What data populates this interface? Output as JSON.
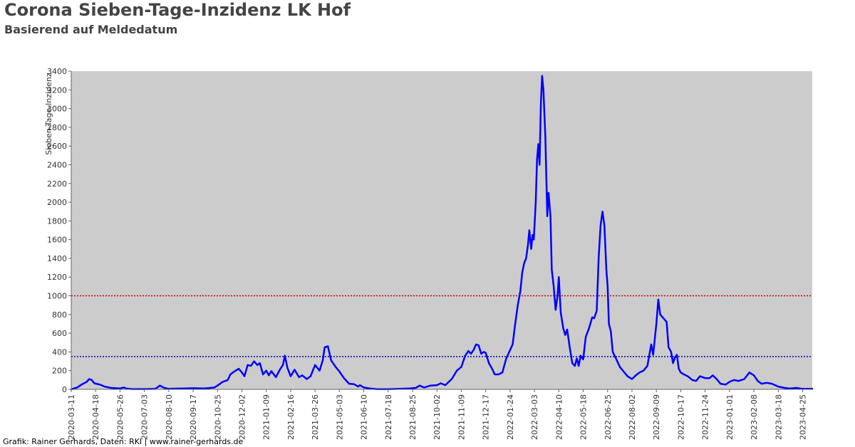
{
  "header": {
    "title": "Corona Sieben-Tage-Inzidenz LK Hof",
    "subtitle": "Basierend auf Meldedatum"
  },
  "footer": {
    "credit": "Grafik: Rainer Gerhards, Daten: RKI | www.rainer-gerhards.de"
  },
  "colors": {
    "plot_background": "#cccccc",
    "series_line": "#0000ff",
    "threshold_1000": "#cc0000",
    "threshold_350": "#0000cc",
    "axis_text": "#333333"
  },
  "chart_data": {
    "type": "line",
    "title": "Corona Sieben-Tage-Inzidenz LK Hof",
    "subtitle": "Basierend auf Meldedatum",
    "xlabel": "",
    "ylabel": "Sieben-Tage-Inzidenz",
    "ylim": [
      0,
      3400
    ],
    "xlim": [
      "2020-03-11",
      "2023-05-10"
    ],
    "grid": false,
    "legend": "none",
    "yticks": [
      0,
      200,
      400,
      600,
      800,
      1000,
      1200,
      1400,
      1600,
      1800,
      2000,
      2200,
      2400,
      2600,
      2800,
      3000,
      3200,
      3400
    ],
    "xticks": [
      "2020-03-11",
      "2020-04-18",
      "2020-05-26",
      "2020-07-03",
      "2020-08-10",
      "2020-09-17",
      "2020-10-25",
      "2020-12-02",
      "2021-01-09",
      "2021-02-16",
      "2021-03-26",
      "2021-05-03",
      "2021-06-10",
      "2021-07-18",
      "2021-08-25",
      "2021-10-02",
      "2021-11-09",
      "2021-12-17",
      "2022-01-24",
      "2022-03-03",
      "2022-04-10",
      "2022-05-18",
      "2022-06-25",
      "2022-08-02",
      "2022-09-09",
      "2022-10-17",
      "2022-11-24",
      "2023-01-01",
      "2023-02-08",
      "2023-03-18",
      "2023-04-25"
    ],
    "reference_lines": [
      {
        "y": 1000,
        "style": "dotted",
        "color": "#cc0000"
      },
      {
        "y": 350,
        "style": "dotted",
        "color": "#0000cc"
      }
    ],
    "series": [
      {
        "color": "#0000ff",
        "points": [
          [
            "2020-03-11",
            0
          ],
          [
            "2020-03-20",
            20
          ],
          [
            "2020-03-28",
            55
          ],
          [
            "2020-04-04",
            80
          ],
          [
            "2020-04-08",
            110
          ],
          [
            "2020-04-12",
            100
          ],
          [
            "2020-04-16",
            65
          ],
          [
            "2020-04-25",
            50
          ],
          [
            "2020-05-02",
            30
          ],
          [
            "2020-05-12",
            15
          ],
          [
            "2020-05-26",
            10
          ],
          [
            "2020-06-01",
            20
          ],
          [
            "2020-06-05",
            8
          ],
          [
            "2020-06-15",
            3
          ],
          [
            "2020-07-03",
            3
          ],
          [
            "2020-07-20",
            5
          ],
          [
            "2020-07-27",
            40
          ],
          [
            "2020-08-03",
            15
          ],
          [
            "2020-08-10",
            5
          ],
          [
            "2020-08-25",
            8
          ],
          [
            "2020-09-17",
            12
          ],
          [
            "2020-10-05",
            10
          ],
          [
            "2020-10-20",
            20
          ],
          [
            "2020-10-25",
            40
          ],
          [
            "2020-11-02",
            80
          ],
          [
            "2020-11-10",
            100
          ],
          [
            "2020-11-14",
            160
          ],
          [
            "2020-11-20",
            190
          ],
          [
            "2020-11-27",
            220
          ],
          [
            "2020-12-02",
            180
          ],
          [
            "2020-12-06",
            140
          ],
          [
            "2020-12-11",
            260
          ],
          [
            "2020-12-16",
            250
          ],
          [
            "2020-12-21",
            300
          ],
          [
            "2020-12-26",
            260
          ],
          [
            "2020-12-30",
            280
          ],
          [
            "2021-01-04",
            160
          ],
          [
            "2021-01-09",
            200
          ],
          [
            "2021-01-13",
            150
          ],
          [
            "2021-01-17",
            195
          ],
          [
            "2021-01-24",
            130
          ],
          [
            "2021-01-31",
            220
          ],
          [
            "2021-02-04",
            260
          ],
          [
            "2021-02-07",
            360
          ],
          [
            "2021-02-11",
            230
          ],
          [
            "2021-02-16",
            140
          ],
          [
            "2021-02-22",
            210
          ],
          [
            "2021-03-01",
            130
          ],
          [
            "2021-03-06",
            150
          ],
          [
            "2021-03-13",
            110
          ],
          [
            "2021-03-19",
            140
          ],
          [
            "2021-03-26",
            260
          ],
          [
            "2021-04-02",
            200
          ],
          [
            "2021-04-07",
            310
          ],
          [
            "2021-04-10",
            450
          ],
          [
            "2021-04-15",
            460
          ],
          [
            "2021-04-20",
            310
          ],
          [
            "2021-04-27",
            240
          ],
          [
            "2021-05-03",
            190
          ],
          [
            "2021-05-10",
            120
          ],
          [
            "2021-05-18",
            60
          ],
          [
            "2021-05-26",
            55
          ],
          [
            "2021-06-01",
            30
          ],
          [
            "2021-06-04",
            45
          ],
          [
            "2021-06-10",
            20
          ],
          [
            "2021-06-20",
            8
          ],
          [
            "2021-07-01",
            2
          ],
          [
            "2021-07-18",
            2
          ],
          [
            "2021-08-05",
            5
          ],
          [
            "2021-08-20",
            10
          ],
          [
            "2021-08-30",
            15
          ],
          [
            "2021-09-05",
            40
          ],
          [
            "2021-09-12",
            20
          ],
          [
            "2021-09-22",
            40
          ],
          [
            "2021-10-02",
            45
          ],
          [
            "2021-10-08",
            65
          ],
          [
            "2021-10-15",
            45
          ],
          [
            "2021-10-25",
            110
          ],
          [
            "2021-11-02",
            200
          ],
          [
            "2021-11-09",
            240
          ],
          [
            "2021-11-15",
            360
          ],
          [
            "2021-11-20",
            410
          ],
          [
            "2021-11-24",
            380
          ],
          [
            "2021-11-28",
            420
          ],
          [
            "2021-12-02",
            480
          ],
          [
            "2021-12-06",
            470
          ],
          [
            "2021-12-10",
            380
          ],
          [
            "2021-12-14",
            400
          ],
          [
            "2021-12-17",
            390
          ],
          [
            "2021-12-22",
            280
          ],
          [
            "2021-12-27",
            220
          ],
          [
            "2021-12-31",
            160
          ],
          [
            "2022-01-06",
            160
          ],
          [
            "2022-01-12",
            180
          ],
          [
            "2022-01-18",
            330
          ],
          [
            "2022-01-24",
            420
          ],
          [
            "2022-01-28",
            480
          ],
          [
            "2022-02-01",
            700
          ],
          [
            "2022-02-05",
            900
          ],
          [
            "2022-02-09",
            1050
          ],
          [
            "2022-02-12",
            1250
          ],
          [
            "2022-02-15",
            1350
          ],
          [
            "2022-02-18",
            1400
          ],
          [
            "2022-02-21",
            1550
          ],
          [
            "2022-02-23",
            1700
          ],
          [
            "2022-02-26",
            1500
          ],
          [
            "2022-02-28",
            1650
          ],
          [
            "2022-03-02",
            1600
          ],
          [
            "2022-03-05",
            2000
          ],
          [
            "2022-03-07",
            2450
          ],
          [
            "2022-03-09",
            2620
          ],
          [
            "2022-03-11",
            2400
          ],
          [
            "2022-03-13",
            3050
          ],
          [
            "2022-03-15",
            3350
          ],
          [
            "2022-03-17",
            3200
          ],
          [
            "2022-03-20",
            2700
          ],
          [
            "2022-03-23",
            1850
          ],
          [
            "2022-03-25",
            2100
          ],
          [
            "2022-03-28",
            1850
          ],
          [
            "2022-03-30",
            1280
          ],
          [
            "2022-04-02",
            1100
          ],
          [
            "2022-04-05",
            850
          ],
          [
            "2022-04-08",
            1000
          ],
          [
            "2022-04-10",
            1200
          ],
          [
            "2022-04-13",
            820
          ],
          [
            "2022-04-17",
            650
          ],
          [
            "2022-04-20",
            580
          ],
          [
            "2022-04-23",
            640
          ],
          [
            "2022-04-27",
            450
          ],
          [
            "2022-05-01",
            280
          ],
          [
            "2022-05-05",
            250
          ],
          [
            "2022-05-08",
            330
          ],
          [
            "2022-05-11",
            250
          ],
          [
            "2022-05-14",
            360
          ],
          [
            "2022-05-18",
            320
          ],
          [
            "2022-05-22",
            560
          ],
          [
            "2022-05-27",
            650
          ],
          [
            "2022-06-01",
            770
          ],
          [
            "2022-06-04",
            760
          ],
          [
            "2022-06-08",
            840
          ],
          [
            "2022-06-11",
            1400
          ],
          [
            "2022-06-14",
            1750
          ],
          [
            "2022-06-17",
            1900
          ],
          [
            "2022-06-20",
            1750
          ],
          [
            "2022-06-23",
            1280
          ],
          [
            "2022-06-25",
            1100
          ],
          [
            "2022-06-27",
            700
          ],
          [
            "2022-06-30",
            620
          ],
          [
            "2022-07-03",
            400
          ],
          [
            "2022-07-08",
            330
          ],
          [
            "2022-07-14",
            240
          ],
          [
            "2022-07-20",
            190
          ],
          [
            "2022-07-26",
            140
          ],
          [
            "2022-08-02",
            110
          ],
          [
            "2022-08-08",
            150
          ],
          [
            "2022-08-14",
            180
          ],
          [
            "2022-08-20",
            200
          ],
          [
            "2022-08-26",
            250
          ],
          [
            "2022-09-01",
            480
          ],
          [
            "2022-09-04",
            370
          ],
          [
            "2022-09-06",
            500
          ],
          [
            "2022-09-09",
            700
          ],
          [
            "2022-09-12",
            960
          ],
          [
            "2022-09-15",
            800
          ],
          [
            "2022-09-20",
            760
          ],
          [
            "2022-09-25",
            720
          ],
          [
            "2022-09-28",
            450
          ],
          [
            "2022-10-02",
            400
          ],
          [
            "2022-10-05",
            280
          ],
          [
            "2022-10-08",
            340
          ],
          [
            "2022-10-11",
            370
          ],
          [
            "2022-10-14",
            220
          ],
          [
            "2022-10-17",
            180
          ],
          [
            "2022-10-22",
            160
          ],
          [
            "2022-10-28",
            140
          ],
          [
            "2022-11-04",
            100
          ],
          [
            "2022-11-10",
            90
          ],
          [
            "2022-11-16",
            140
          ],
          [
            "2022-11-24",
            120
          ],
          [
            "2022-12-01",
            120
          ],
          [
            "2022-12-06",
            150
          ],
          [
            "2022-12-12",
            110
          ],
          [
            "2022-12-18",
            60
          ],
          [
            "2022-12-26",
            50
          ],
          [
            "2023-01-01",
            80
          ],
          [
            "2023-01-08",
            100
          ],
          [
            "2023-01-15",
            90
          ],
          [
            "2023-01-24",
            110
          ],
          [
            "2023-02-01",
            180
          ],
          [
            "2023-02-08",
            150
          ],
          [
            "2023-02-14",
            90
          ],
          [
            "2023-02-20",
            60
          ],
          [
            "2023-02-28",
            70
          ],
          [
            "2023-03-08",
            60
          ],
          [
            "2023-03-18",
            30
          ],
          [
            "2023-03-28",
            15
          ],
          [
            "2023-04-05",
            8
          ],
          [
            "2023-04-15",
            15
          ],
          [
            "2023-04-25",
            5
          ],
          [
            "2023-05-10",
            5
          ]
        ]
      }
    ]
  }
}
